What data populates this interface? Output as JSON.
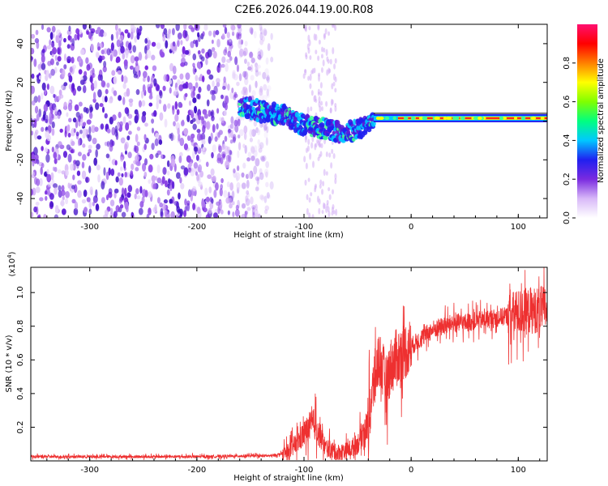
{
  "title": "C2E6.2026.044.19.00.R08",
  "chart_data": [
    {
      "type": "heatmap",
      "xlabel": "Height of straight line (km)",
      "ylabel": "Frequency (Hz)",
      "xlim": [
        -355,
        127
      ],
      "ylim": [
        -50,
        50
      ],
      "xticks": [
        -300,
        -200,
        -100,
        0,
        100
      ],
      "yticks": [
        -40,
        -20,
        0,
        20,
        40
      ],
      "grid": false,
      "noise_region": {
        "x_range": [
          -355,
          -130
        ],
        "y_range": [
          -50,
          50
        ]
      },
      "sparse_noise_band": {
        "x_range": [
          -100,
          -70
        ],
        "y_range": [
          -50,
          50
        ]
      },
      "signal_track": [
        {
          "x": -160,
          "y": 8
        },
        {
          "x": -140,
          "y": 5
        },
        {
          "x": -120,
          "y": 3
        },
        {
          "x": -100,
          "y": -2
        },
        {
          "x": -80,
          "y": -4
        },
        {
          "x": -60,
          "y": -6
        },
        {
          "x": -45,
          "y": -3
        },
        {
          "x": -35,
          "y": 2
        },
        {
          "x": -20,
          "y": 1.5
        },
        {
          "x": 0,
          "y": 1.5
        },
        {
          "x": 50,
          "y": 1.5
        },
        {
          "x": 100,
          "y": 1.5
        },
        {
          "x": 127,
          "y": 1.5
        }
      ],
      "colorbar": {
        "label": "Normalized spectral amplitude",
        "range": [
          0,
          1
        ],
        "ticks": [
          "0.0",
          "0.2",
          "0.4",
          "0.6",
          "0.8"
        ],
        "colors": [
          "#ffffff",
          "#d8b8f8",
          "#7a2be0",
          "#2020f0",
          "#00c8ff",
          "#00ff80",
          "#80ff00",
          "#ffff00",
          "#ff8000",
          "#ff0000",
          "#ff1070"
        ]
      }
    },
    {
      "type": "line",
      "xlabel": "Height of straight line (km)",
      "ylabel": "SNR (10 * v/v)",
      "scale_label": "(x10",
      "scale_exponent": "4",
      "scale_suffix": ")",
      "xlim": [
        -355,
        127
      ],
      "ylim": [
        0,
        1.15
      ],
      "xticks": [
        -300,
        -200,
        -100,
        0,
        100
      ],
      "yticks": [
        0.2,
        0.4,
        0.6,
        0.8,
        1.0
      ],
      "grid": false,
      "color": "#ee3030",
      "series": [
        {
          "name": "SNR",
          "points": [
            [
              -355,
              0.025
            ],
            [
              -300,
              0.025
            ],
            [
              -250,
              0.025
            ],
            [
              -200,
              0.025
            ],
            [
              -150,
              0.03
            ],
            [
              -130,
              0.03
            ],
            [
              -115,
              0.05
            ],
            [
              -105,
              0.12
            ],
            [
              -95,
              0.2
            ],
            [
              -90,
              0.22
            ],
            [
              -85,
              0.15
            ],
            [
              -80,
              0.08
            ],
            [
              -70,
              0.05
            ],
            [
              -60,
              0.06
            ],
            [
              -50,
              0.1
            ],
            [
              -45,
              0.17
            ],
            [
              -40,
              0.22
            ],
            [
              -35,
              0.45
            ],
            [
              -30,
              0.62
            ],
            [
              -27,
              0.55
            ],
            [
              -23,
              0.45
            ],
            [
              -20,
              0.55
            ],
            [
              -15,
              0.6
            ],
            [
              -10,
              0.63
            ],
            [
              -5,
              0.66
            ],
            [
              0,
              0.68
            ],
            [
              10,
              0.73
            ],
            [
              20,
              0.78
            ],
            [
              30,
              0.8
            ],
            [
              40,
              0.82
            ],
            [
              50,
              0.82
            ],
            [
              60,
              0.83
            ],
            [
              70,
              0.84
            ],
            [
              80,
              0.85
            ],
            [
              90,
              0.86
            ],
            [
              100,
              0.88
            ],
            [
              110,
              0.89
            ],
            [
              120,
              0.9
            ],
            [
              127,
              0.9
            ]
          ]
        }
      ]
    }
  ]
}
